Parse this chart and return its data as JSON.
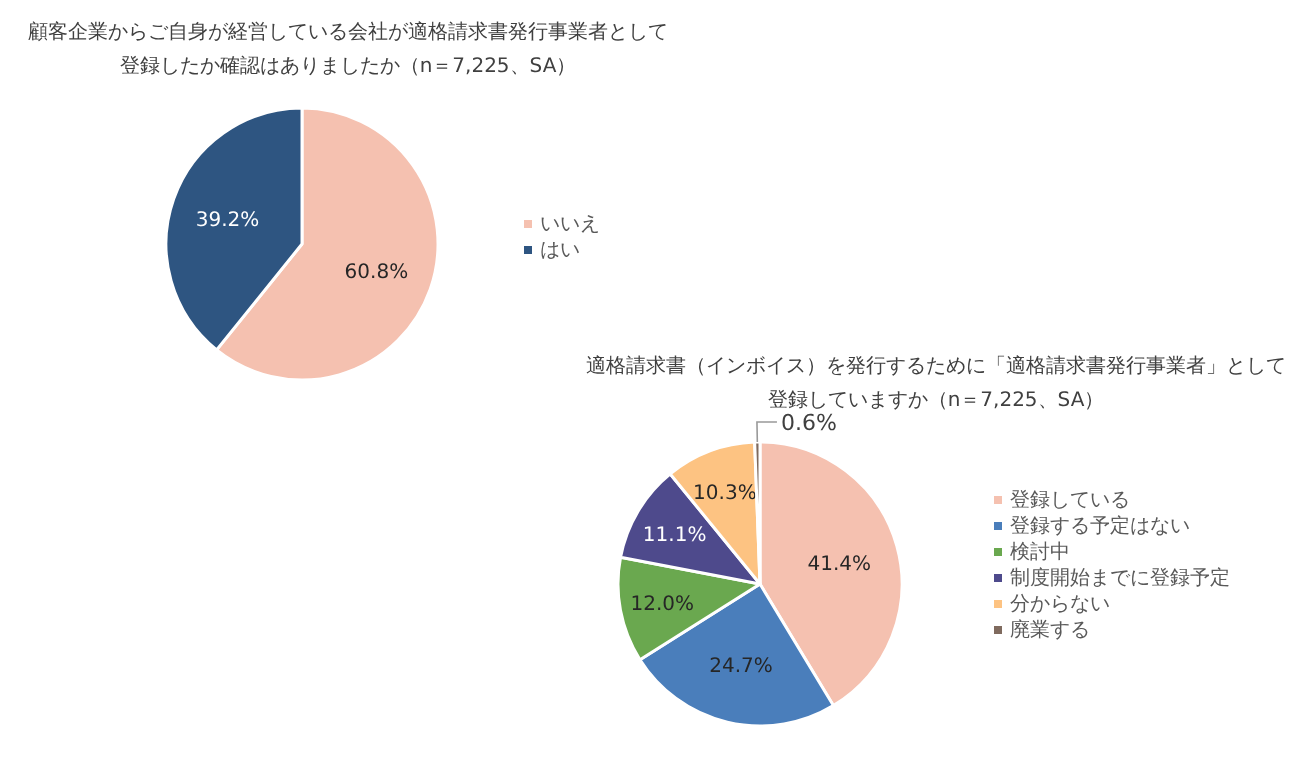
{
  "chart_data": [
    {
      "type": "pie",
      "title": "顧客企業からご自身が経営している会社が適格請求書発行事業者として登録したか確認はありましたか（n＝7,225、SA）",
      "categories": [
        "いいえ",
        "はい"
      ],
      "values": [
        60.8,
        39.2
      ],
      "colors": [
        "#f5c1b0",
        "#2e5581"
      ],
      "value_labels": [
        "60.8%",
        "39.2%"
      ],
      "legend": "right"
    },
    {
      "type": "pie",
      "title": "適格請求書（インボイス）を発行するために「適格請求書発行事業者」として登録していますか（n＝7,225、SA）",
      "categories": [
        "登録している",
        "登録する予定はない",
        "検討中",
        "制度開始までに登録予定",
        "分からない",
        "廃業する"
      ],
      "values": [
        41.4,
        24.7,
        12.0,
        11.1,
        10.3,
        0.6
      ],
      "colors": [
        "#f5c1b0",
        "#4a7ebb",
        "#6aa84f",
        "#4e4a8c",
        "#fdc382",
        "#7f6a5e"
      ],
      "value_labels": [
        "41.4%",
        "24.7%",
        "12.0%",
        "11.1%",
        "10.3%",
        "0.6%"
      ],
      "legend": "right"
    }
  ]
}
